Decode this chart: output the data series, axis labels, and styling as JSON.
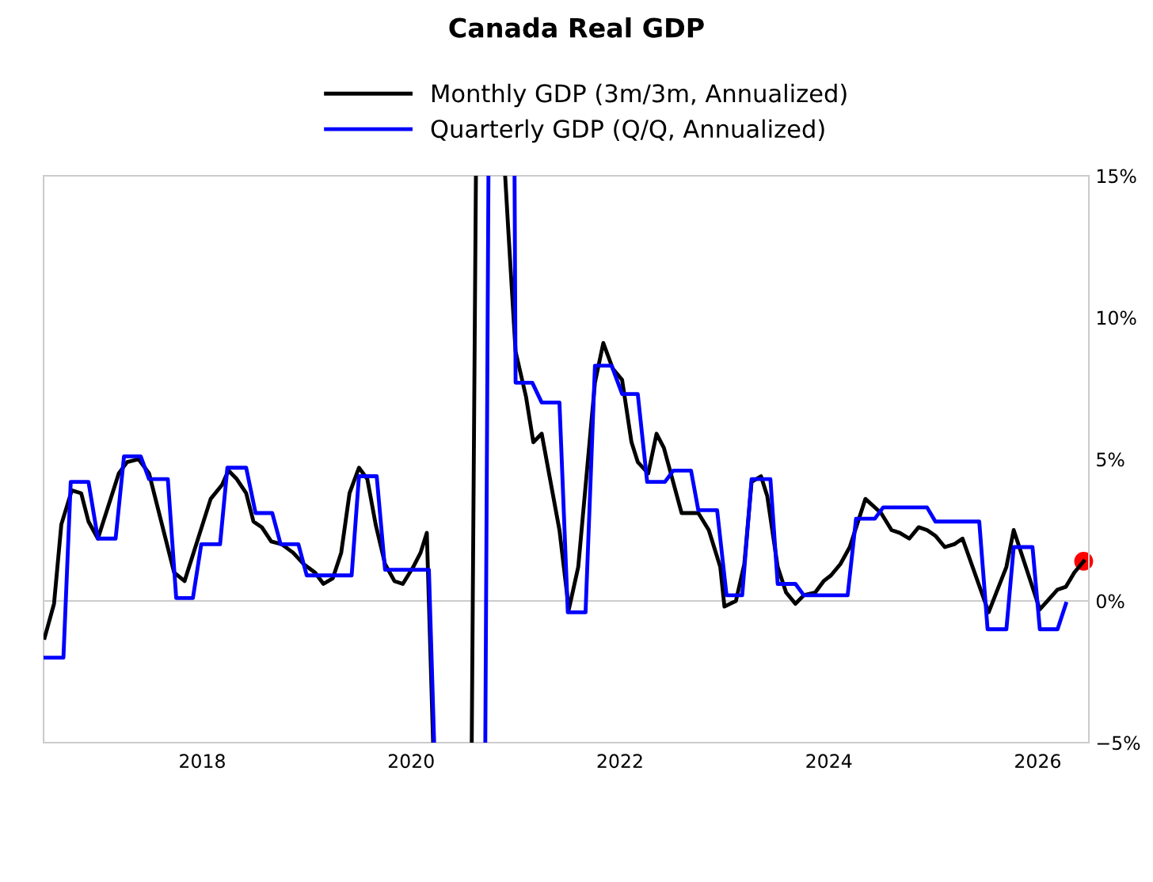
{
  "chart_data": {
    "type": "line",
    "title": "Canada Real GDP",
    "xlim": [
      2016.48,
      2026.49
    ],
    "xticks": [
      2018,
      2020,
      2022,
      2024,
      2026
    ],
    "ylim": [
      -5,
      15
    ],
    "yticks": [
      {
        "value": 15,
        "label": "15%"
      },
      {
        "value": 10,
        "label": "10%"
      },
      {
        "value": 5,
        "label": "5%"
      },
      {
        "value": 0,
        "label": "0%"
      },
      {
        "value": -5,
        "label": "−5%"
      }
    ],
    "grid": false,
    "legend": "top",
    "line_style": "solid",
    "marker": "none",
    "ref_lines": [
      {
        "axis": "y",
        "value": 0,
        "color": "#cccccc"
      }
    ],
    "series": [
      {
        "name": "Monthly GDP (3m/3m, Annualized)",
        "color": "#000000",
        "x": [
          2016.49,
          2016.58,
          2016.65,
          2016.75,
          2016.84,
          2016.91,
          2017.0,
          2017.2,
          2017.28,
          2017.39,
          2017.49,
          2017.73,
          2017.83,
          2018.08,
          2018.19,
          2018.25,
          2018.33,
          2018.42,
          2018.49,
          2018.57,
          2018.66,
          2018.76,
          2018.87,
          2018.97,
          2019.08,
          2019.16,
          2019.25,
          2019.33,
          2019.41,
          2019.5,
          2019.58,
          2019.66,
          2019.75,
          2019.84,
          2019.92,
          2020.02,
          2020.09,
          2020.15,
          2020.21,
          2020.4,
          2020.58,
          2020.62,
          2020.7,
          2020.9,
          2020.93,
          2021.0,
          2021.1,
          2021.17,
          2021.25,
          2021.42,
          2021.51,
          2021.6,
          2021.76,
          2021.84,
          2021.93,
          2022.02,
          2022.11,
          2022.17,
          2022.27,
          2022.35,
          2022.42,
          2022.59,
          2022.75,
          2022.85,
          2022.96,
          2023.0,
          2023.11,
          2023.19,
          2023.26,
          2023.35,
          2023.41,
          2023.51,
          2023.59,
          2023.68,
          2023.76,
          2023.87,
          2023.95,
          2024.02,
          2024.11,
          2024.2,
          2024.35,
          2024.5,
          2024.6,
          2024.68,
          2024.77,
          2024.86,
          2024.94,
          2025.02,
          2025.11,
          2025.2,
          2025.28,
          2025.53,
          2025.7,
          2025.77,
          2026.02,
          2026.19,
          2026.27,
          2026.35,
          2026.44
        ],
        "values": [
          -1.3,
          -0.1,
          2.7,
          3.9,
          3.8,
          2.8,
          2.2,
          4.5,
          4.9,
          5.0,
          4.5,
          1.0,
          0.7,
          3.6,
          4.1,
          4.6,
          4.3,
          3.8,
          2.8,
          2.6,
          2.1,
          2.0,
          1.7,
          1.3,
          1.0,
          0.6,
          0.8,
          1.7,
          3.8,
          4.7,
          4.3,
          2.7,
          1.3,
          0.7,
          0.6,
          1.2,
          1.7,
          2.4,
          -5,
          null,
          -5,
          15,
          null,
          15,
          13.1,
          8.8,
          7.2,
          5.6,
          5.9,
          2.5,
          -0.3,
          1.2,
          7.7,
          9.1,
          8.2,
          7.8,
          5.6,
          4.9,
          4.5,
          5.9,
          5.4,
          3.1,
          3.1,
          2.5,
          1.2,
          -0.2,
          0.0,
          1.3,
          4.2,
          4.4,
          3.7,
          1.2,
          0.3,
          -0.1,
          0.2,
          0.3,
          0.7,
          0.9,
          1.3,
          1.9,
          3.6,
          3.1,
          2.5,
          2.4,
          2.2,
          2.6,
          2.5,
          2.3,
          1.9,
          2.0,
          2.2,
          -0.4,
          1.2,
          2.5,
          -0.3,
          0.4,
          0.5,
          1.0,
          1.4
        ]
      },
      {
        "name": "Quarterly GDP (Q/Q, Annualized)",
        "color": "#0000ff",
        "x": [
          2016.49,
          2016.67,
          2016.74,
          2016.91,
          2017.0,
          2017.17,
          2017.25,
          2017.41,
          2017.49,
          2017.67,
          2017.75,
          2017.91,
          2017.99,
          2018.17,
          2018.24,
          2018.42,
          2018.51,
          2018.67,
          2018.75,
          2018.92,
          2019.0,
          2019.43,
          2019.5,
          2019.67,
          2019.75,
          2020.17,
          2020.22,
          2020.4,
          2020.71,
          2020.74,
          2020.8,
          2020.99,
          2021.0,
          2021.16,
          2021.25,
          2021.42,
          2021.5,
          2021.67,
          2021.76,
          2021.92,
          2022.02,
          2022.17,
          2022.26,
          2022.43,
          2022.51,
          2022.68,
          2022.75,
          2022.93,
          2023.02,
          2023.17,
          2023.26,
          2023.44,
          2023.51,
          2023.68,
          2023.76,
          2024.18,
          2024.26,
          2024.44,
          2024.52,
          2024.94,
          2025.02,
          2025.44,
          2025.52,
          2025.7,
          2025.77,
          2025.95,
          2026.02,
          2026.19,
          2026.27
        ],
        "values": [
          -2.0,
          -2.0,
          4.2,
          4.2,
          2.2,
          2.2,
          5.1,
          5.1,
          4.3,
          4.3,
          0.1,
          0.1,
          2.0,
          2.0,
          4.7,
          4.7,
          3.1,
          3.1,
          2.0,
          2.0,
          0.9,
          0.9,
          4.4,
          4.4,
          1.1,
          1.1,
          -5,
          null,
          -5,
          15,
          null,
          15,
          7.7,
          7.7,
          7.0,
          7.0,
          -0.4,
          -0.4,
          8.3,
          8.3,
          7.3,
          7.3,
          4.2,
          4.2,
          4.6,
          4.6,
          3.2,
          3.2,
          0.2,
          0.2,
          4.3,
          4.3,
          0.6,
          0.6,
          0.2,
          0.2,
          2.9,
          2.9,
          3.3,
          3.3,
          2.8,
          2.8,
          -1.0,
          -1.0,
          1.9,
          1.9,
          -1.0,
          -1.0,
          -0.1
        ]
      },
      {
        "type": "scatter",
        "marker": "circle",
        "color": "#ff0000",
        "x": [
          2026.44
        ],
        "values": [
          1.4
        ]
      }
    ]
  }
}
